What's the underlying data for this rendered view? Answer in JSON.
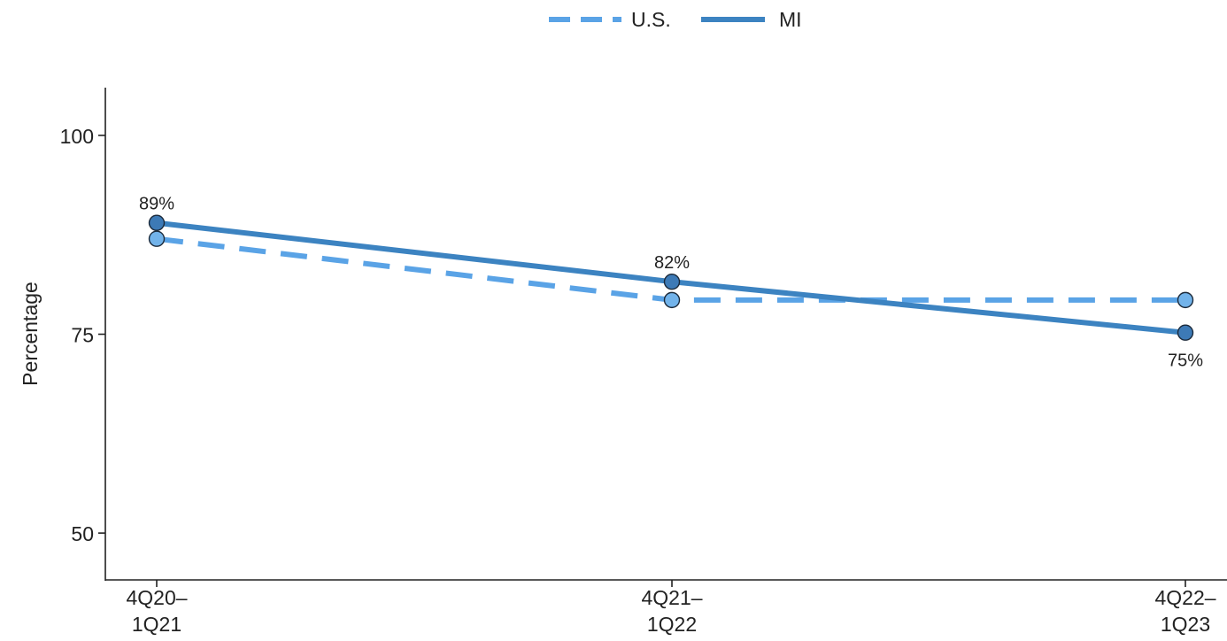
{
  "chart_data": {
    "type": "line",
    "title": "",
    "xlabel": "",
    "ylabel": "Percentage",
    "categories": [
      "4Q20–\n1Q21",
      "4Q21–\n1Q22",
      "4Q22–\n1Q23"
    ],
    "ylim": [
      44,
      106
    ],
    "yticks": [
      50,
      75,
      100
    ],
    "grid": false,
    "legend_position": "top-center",
    "series": [
      {
        "name": "U.S.",
        "values": [
          87,
          79.3,
          79.3
        ],
        "color": "#5aa3e6",
        "line_style": "dashed",
        "point_color": "#72b3ea"
      },
      {
        "name": "MI",
        "values": [
          89,
          81.6,
          75.2
        ],
        "color": "#3c83c1",
        "line_style": "solid",
        "point_color": "#3d7ab6",
        "data_labels": [
          "89%",
          "82%",
          "75%"
        ]
      }
    ]
  }
}
